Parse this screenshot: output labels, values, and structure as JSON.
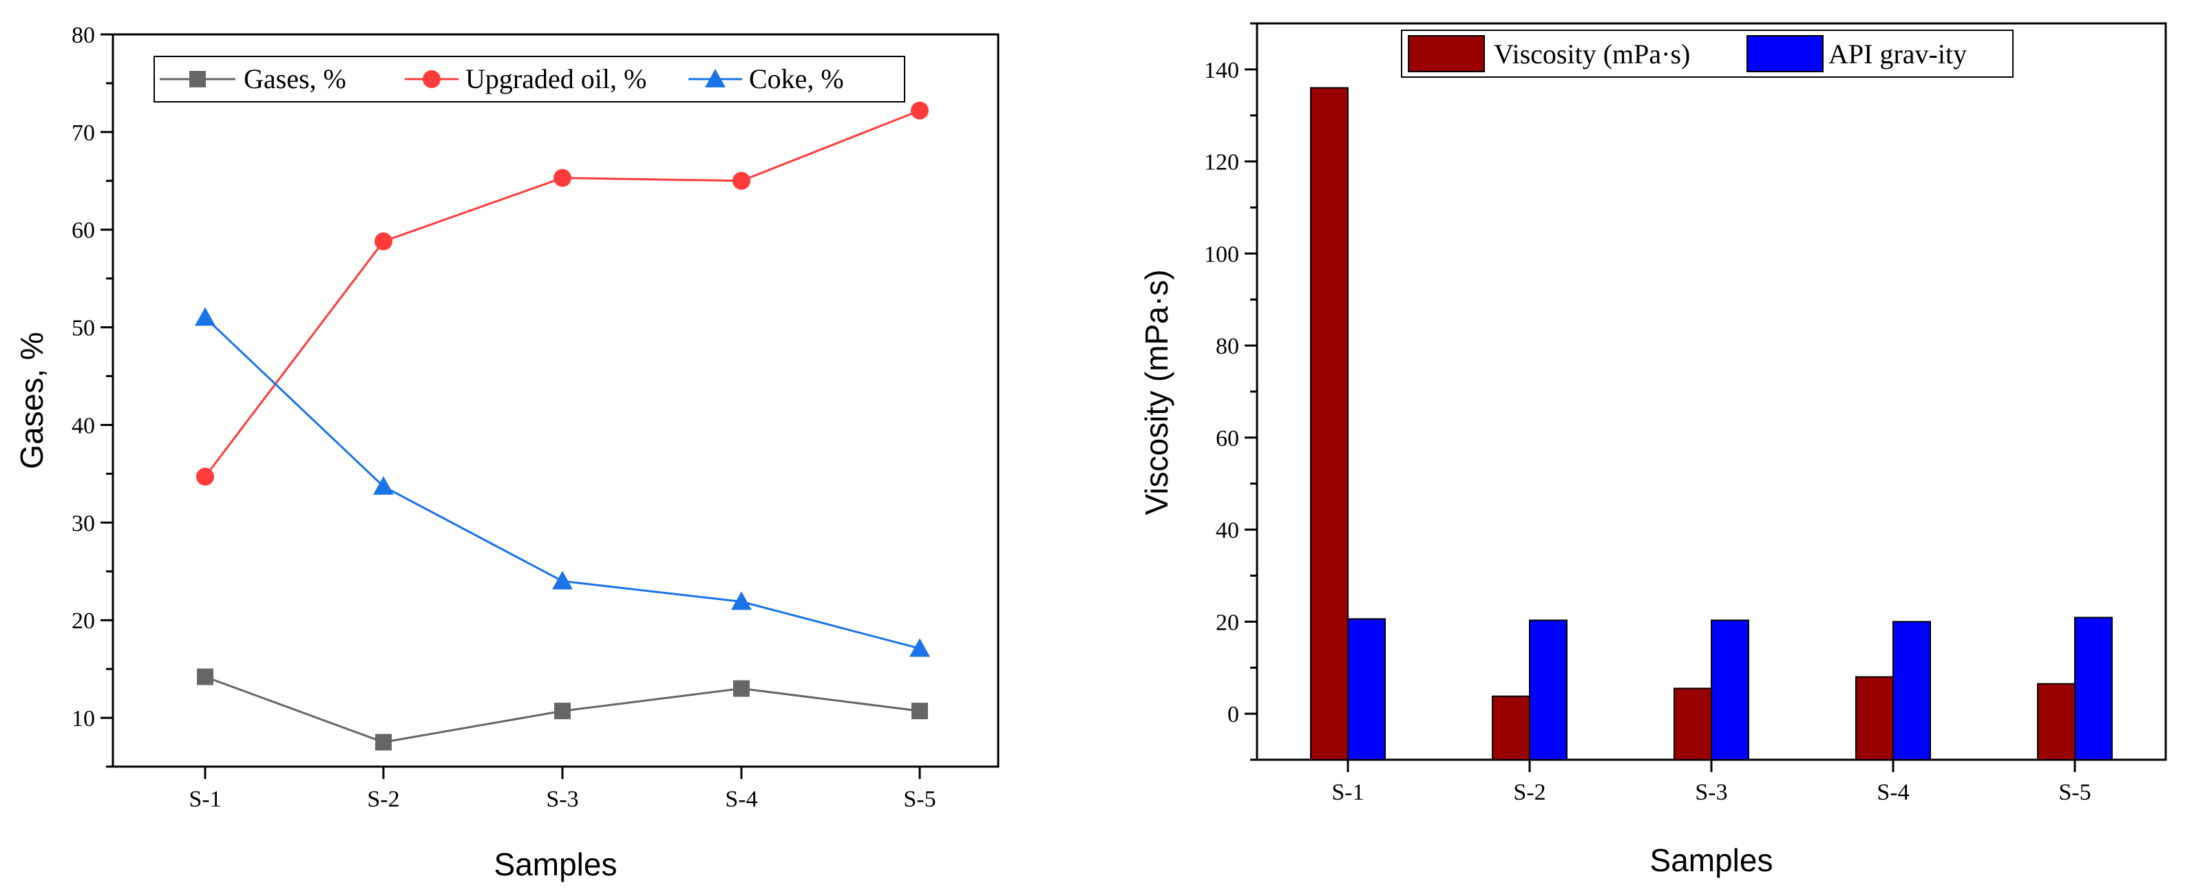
{
  "chart_data": [
    {
      "type": "line",
      "categories": [
        "S-1",
        "S-2",
        "S-3",
        "S-4",
        "S-5"
      ],
      "xlabel": "Samples",
      "ylabel": "Gases, %",
      "ylim": [
        5,
        80
      ],
      "yticks": [
        10,
        20,
        30,
        40,
        50,
        60,
        70,
        80
      ],
      "legend_position": "top",
      "series": [
        {
          "name": "Gases, %",
          "color": "#666666",
          "marker": "square",
          "values": [
            14.2,
            7.5,
            10.7,
            13.0,
            10.7
          ]
        },
        {
          "name": "Upgraded oil, %",
          "color": "#ff3b3b",
          "marker": "circle",
          "values": [
            34.7,
            58.8,
            65.3,
            65.0,
            72.2
          ]
        },
        {
          "name": "Coke, %",
          "color": "#1a73e8",
          "marker": "triangle",
          "values": [
            51.0,
            33.7,
            24.0,
            21.9,
            17.1
          ]
        }
      ]
    },
    {
      "type": "bar",
      "categories": [
        "S-1",
        "S-2",
        "S-3",
        "S-4",
        "S-5"
      ],
      "xlabel": "Samples",
      "ylabel": "Viscosity (mPa·s)",
      "ylim": [
        -10,
        150
      ],
      "yticks": [
        0,
        20,
        40,
        60,
        80,
        100,
        120,
        140
      ],
      "legend_position": "top",
      "series": [
        {
          "name": "Viscosity (mPa·s)",
          "color": "#990000",
          "values": [
            136,
            3.8,
            5.5,
            8.0,
            6.5
          ]
        },
        {
          "name": "API grav-ity",
          "color": "#0000ff",
          "values": [
            20.6,
            20.3,
            20.3,
            20.0,
            20.9
          ]
        }
      ]
    }
  ]
}
